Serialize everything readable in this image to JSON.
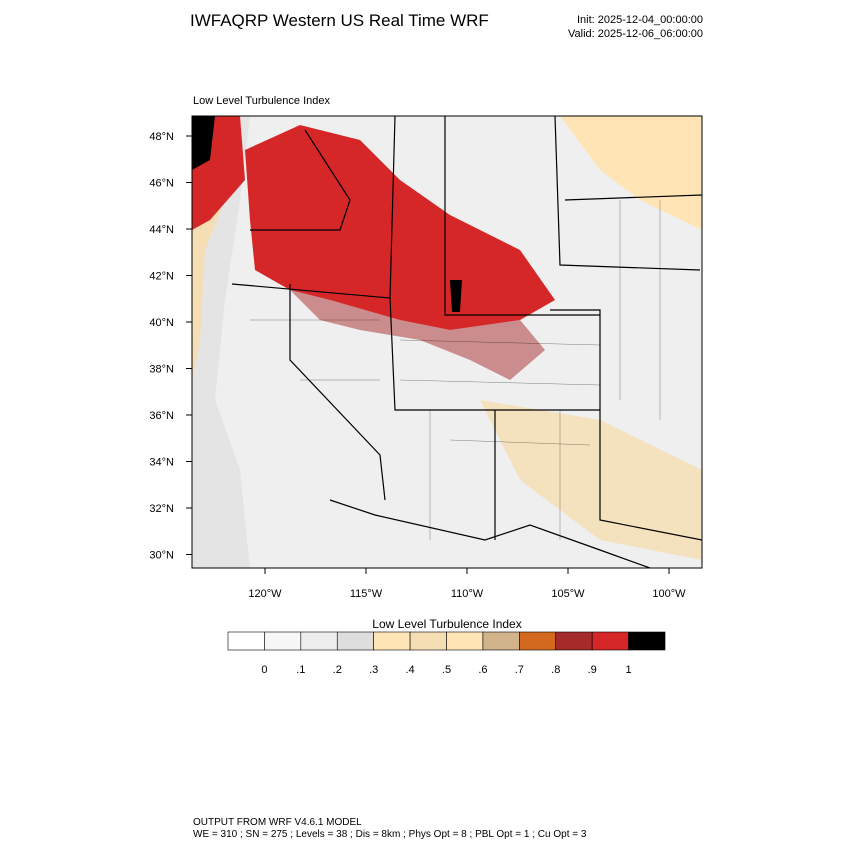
{
  "header": {
    "title": "IWFAQRP Western US Real Time WRF",
    "init": "Init: 2025-12-04_00:00:00",
    "valid": "Valid: 2025-12-06_06:00:00"
  },
  "map": {
    "subtitle": "Low Level Turbulence Index",
    "lat_labels": [
      "48°N",
      "46°N",
      "44°N",
      "42°N",
      "40°N",
      "38°N",
      "36°N",
      "34°N",
      "32°N",
      "30°N"
    ],
    "lon_labels": [
      "120°W",
      "115°W",
      "110°W",
      "105°W",
      "100°W"
    ]
  },
  "colorbar": {
    "title": "Low Level Turbulence Index",
    "colors": [
      "#ffffff",
      "#f7f7f7",
      "#eeeeee",
      "#dedede",
      "#ffe4b5",
      "#f5deb3",
      "#ffe4b5",
      "#d2b48c",
      "#d2691e",
      "#a52a2a",
      "#d62728",
      "#000000"
    ],
    "labels": [
      "0",
      ".1",
      ".2",
      ".3",
      ".4",
      ".5",
      ".6",
      ".7",
      ".8",
      ".9",
      "1"
    ]
  },
  "footer": {
    "line1": "OUTPUT FROM WRF V4.6.1 MODEL",
    "line2": "WE = 310 ; SN = 275 ; Levels = 38 ; Dis = 8km ; Phys Opt = 8 ; PBL Opt = 1 ; Cu Opt = 3"
  }
}
